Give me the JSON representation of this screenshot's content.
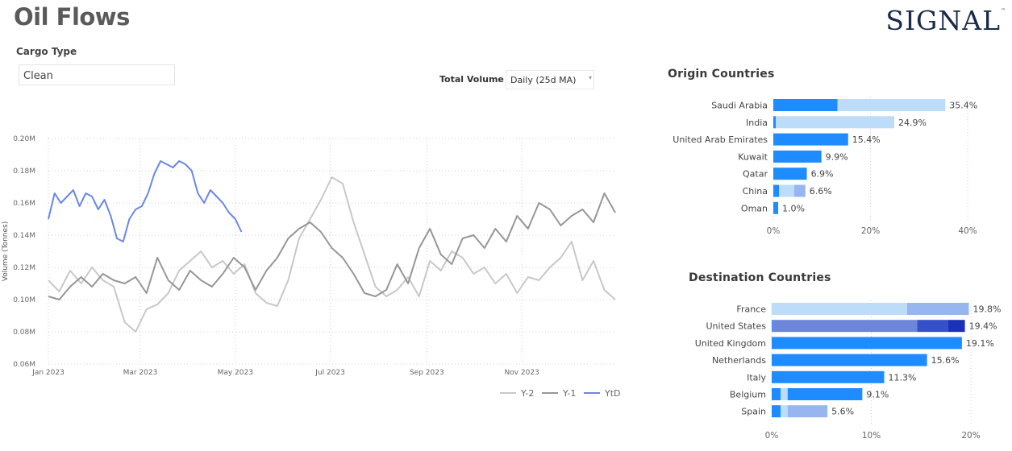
{
  "header": {
    "title": "Oil Flows",
    "logo": "SIGNAL",
    "logo_tm": "™"
  },
  "filters": {
    "cargo_label": "Cargo Type",
    "cargo_value": "Clean",
    "volume_label": "Total Volume",
    "volume_value": "Daily (25d MA)"
  },
  "colors": {
    "y2": "#c8c8c8",
    "y1": "#969696",
    "ytd": "#6b86e6",
    "bar_primary": "#1e8cff",
    "bar_light": "#bddcf8",
    "bar_mid": "#97b6ef",
    "bar_violet": "#6e86da",
    "bar_navy": "#1a32b8"
  },
  "chart_data": [
    {
      "type": "line",
      "ylabel": "Volume (Tonnes)",
      "ylim": [
        60000,
        200000
      ],
      "y_ticks": [
        60000,
        80000,
        100000,
        120000,
        140000,
        160000,
        180000,
        200000
      ],
      "y_tick_labels": [
        "0.06M",
        "0.08M",
        "0.10M",
        "0.12M",
        "0.14M",
        "0.16M",
        "0.18M",
        "0.20M"
      ],
      "x_ticks": [
        0,
        59,
        120,
        181,
        243,
        304
      ],
      "x_tick_labels": [
        "Jan 2023",
        "Mar 2023",
        "May 2023",
        "Jul 2023",
        "Sep 2023",
        "Nov 2023"
      ],
      "x_range": [
        0,
        364
      ],
      "grid": true,
      "legend": "bottom-right",
      "series": [
        {
          "name": "Y-2",
          "x": [
            0,
            7,
            14,
            21,
            28,
            35,
            42,
            49,
            56,
            63,
            70,
            77,
            84,
            91,
            98,
            105,
            112,
            119,
            126,
            133,
            140,
            147,
            154,
            161,
            168,
            175,
            182,
            189,
            196,
            203,
            210,
            217,
            224,
            231,
            238,
            245,
            252,
            259,
            266,
            273,
            280,
            287,
            294,
            301,
            308,
            315,
            322,
            329,
            336,
            343,
            350,
            357,
            364
          ],
          "y": [
            112000,
            105000,
            118000,
            110000,
            120000,
            112000,
            108000,
            86000,
            80000,
            94000,
            97000,
            104000,
            118000,
            124000,
            130000,
            120000,
            124000,
            116000,
            122000,
            104000,
            98000,
            96000,
            112000,
            138000,
            150000,
            162000,
            176000,
            172000,
            148000,
            128000,
            108000,
            102000,
            106000,
            114000,
            102000,
            124000,
            118000,
            130000,
            126000,
            116000,
            120000,
            110000,
            116000,
            104000,
            114000,
            112000,
            120000,
            126000,
            136000,
            112000,
            124000,
            106000,
            100000
          ]
        },
        {
          "name": "Y-1",
          "x": [
            0,
            7,
            14,
            21,
            28,
            35,
            42,
            49,
            56,
            63,
            70,
            77,
            84,
            91,
            98,
            105,
            112,
            119,
            126,
            133,
            140,
            147,
            154,
            161,
            168,
            175,
            182,
            189,
            196,
            203,
            210,
            217,
            224,
            231,
            238,
            245,
            252,
            259,
            266,
            273,
            280,
            287,
            294,
            301,
            308,
            315,
            322,
            329,
            336,
            343,
            350,
            357,
            364
          ],
          "y": [
            102000,
            100000,
            108000,
            114000,
            108000,
            116000,
            112000,
            110000,
            114000,
            104000,
            126000,
            112000,
            106000,
            118000,
            112000,
            108000,
            116000,
            126000,
            120000,
            106000,
            118000,
            126000,
            138000,
            144000,
            148000,
            142000,
            132000,
            126000,
            116000,
            104000,
            102000,
            106000,
            122000,
            110000,
            132000,
            144000,
            128000,
            122000,
            138000,
            140000,
            132000,
            144000,
            136000,
            152000,
            144000,
            160000,
            156000,
            146000,
            152000,
            156000,
            148000,
            166000,
            154000
          ]
        },
        {
          "name": "YtD",
          "x": [
            0,
            4,
            8,
            12,
            16,
            20,
            24,
            28,
            32,
            36,
            40,
            44,
            48,
            52,
            56,
            60,
            64,
            68,
            72,
            76,
            80,
            84,
            88,
            92,
            96,
            100,
            104,
            108,
            112,
            116,
            120,
            124
          ],
          "y": [
            150000,
            166000,
            160000,
            164000,
            168000,
            158000,
            166000,
            164000,
            156000,
            162000,
            152000,
            138000,
            136000,
            150000,
            156000,
            158000,
            166000,
            178000,
            186000,
            184000,
            182000,
            186000,
            184000,
            180000,
            166000,
            160000,
            168000,
            164000,
            160000,
            154000,
            150000,
            142000
          ]
        }
      ]
    },
    {
      "type": "bar",
      "title": "Origin Countries",
      "orientation": "horizontal",
      "stacked": true,
      "categories": [
        "Saudi Arabia",
        "India",
        "United Arab Emirates",
        "Kuwait",
        "Qatar",
        "China",
        "Oman"
      ],
      "totals": [
        35.4,
        24.9,
        15.4,
        9.9,
        6.9,
        6.6,
        1.0
      ],
      "total_labels": [
        "35.4%",
        "24.9%",
        "15.4%",
        "9.9%",
        "6.9%",
        "6.6%",
        "1.0%"
      ],
      "segments": [
        [
          {
            "value": 13.2,
            "color": "#1e8cff"
          },
          {
            "value": 22.2,
            "color": "#bddcf8"
          }
        ],
        [
          {
            "value": 0.5,
            "color": "#1e8cff"
          },
          {
            "value": 24.4,
            "color": "#bddcf8"
          }
        ],
        [
          {
            "value": 15.4,
            "color": "#1e8cff"
          }
        ],
        [
          {
            "value": 9.9,
            "color": "#1e8cff"
          }
        ],
        [
          {
            "value": 6.9,
            "color": "#1e8cff"
          }
        ],
        [
          {
            "value": 1.2,
            "color": "#1e8cff"
          },
          {
            "value": 3.1,
            "color": "#bddcf8"
          },
          {
            "value": 2.3,
            "color": "#97b6ef"
          }
        ],
        [
          {
            "value": 1.0,
            "color": "#1e8cff"
          }
        ]
      ],
      "x_ticks": [
        0,
        20,
        40
      ],
      "x_tick_labels": [
        "0%",
        "20%",
        "40%"
      ],
      "xlim": [
        0,
        40
      ]
    },
    {
      "type": "bar",
      "title": "Destination Countries",
      "orientation": "horizontal",
      "stacked": true,
      "categories": [
        "France",
        "United States",
        "United Kingdom",
        "Netherlands",
        "Italy",
        "Belgium",
        "Spain"
      ],
      "totals": [
        19.8,
        19.4,
        19.1,
        15.6,
        11.3,
        9.1,
        5.6
      ],
      "total_labels": [
        "19.8%",
        "19.4%",
        "19.1%",
        "15.6%",
        "11.3%",
        "9.1%",
        "5.6%"
      ],
      "segments": [
        [
          {
            "value": 13.6,
            "color": "#bddcf8"
          },
          {
            "value": 6.2,
            "color": "#97b6ef"
          }
        ],
        [
          {
            "value": 0.1,
            "color": "#1e8cff"
          },
          {
            "value": 14.5,
            "color": "#6e86da"
          },
          {
            "value": 3.1,
            "color": "#3550c8"
          },
          {
            "value": 1.7,
            "color": "#1a32b8"
          }
        ],
        [
          {
            "value": 19.1,
            "color": "#1e8cff"
          }
        ],
        [
          {
            "value": 15.6,
            "color": "#1e8cff"
          }
        ],
        [
          {
            "value": 11.3,
            "color": "#1e8cff"
          }
        ],
        [
          {
            "value": 0.9,
            "color": "#1e8cff"
          },
          {
            "value": 0.7,
            "color": "#bddcf8"
          },
          {
            "value": 7.5,
            "color": "#1e8cff"
          }
        ],
        [
          {
            "value": 0.9,
            "color": "#1e8cff"
          },
          {
            "value": 0.7,
            "color": "#bddcf8"
          },
          {
            "value": 4.0,
            "color": "#97b6ef"
          }
        ]
      ],
      "x_ticks": [
        0,
        10,
        20
      ],
      "x_tick_labels": [
        "0%",
        "10%",
        "20%"
      ],
      "xlim": [
        0,
        20
      ]
    }
  ]
}
